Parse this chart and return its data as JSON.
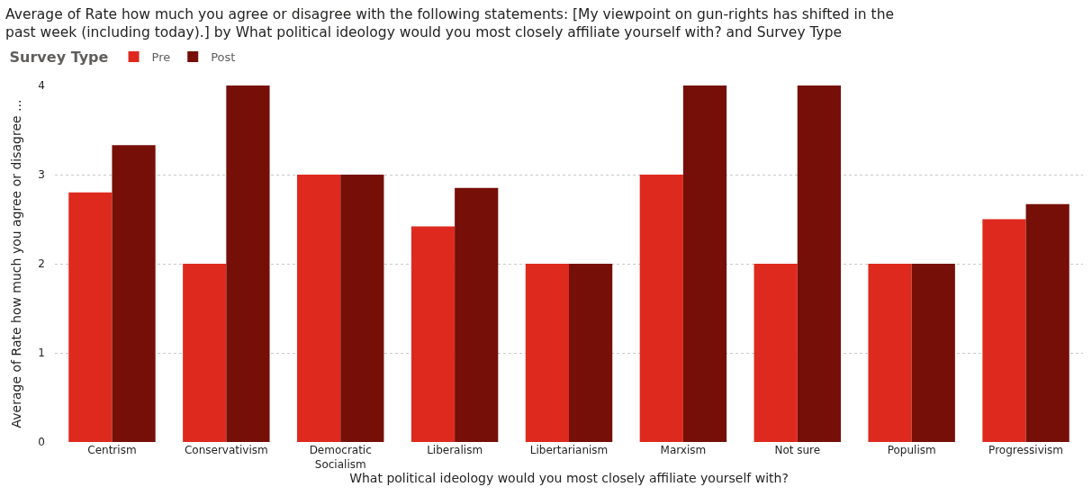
{
  "chart_data": {
    "type": "bar",
    "title": "Average of Rate how much you agree or disagree with the following statements: [My viewpoint on gun-rights has shifted in the past week (including today).] by What political ideology would you most closely affiliate yourself with? and Survey Type",
    "xlabel": "What political ideology would you most closely affiliate yourself with?",
    "ylabel": "Average of Rate how much you agree or disagree ...",
    "legend_title": "Survey Type",
    "categories": [
      "Centrism",
      "Conservativism",
      "Democratic Socialism",
      "Liberalism",
      "Libertarianism",
      "Marxism",
      "Not sure",
      "Populism",
      "Progressivism"
    ],
    "series": [
      {
        "name": "Pre",
        "color": "#de2a1e",
        "values": [
          2.8,
          2,
          3,
          2.42,
          2,
          3,
          2,
          2,
          2.5
        ]
      },
      {
        "name": "Post",
        "color": "#760f08",
        "values": [
          3.33,
          4,
          3,
          2.85,
          2,
          4,
          4,
          2,
          2.67
        ]
      }
    ],
    "ylim": [
      0,
      4
    ],
    "yticks": [
      0,
      1,
      2,
      3,
      4
    ],
    "grid": "y",
    "legend": "top left"
  }
}
